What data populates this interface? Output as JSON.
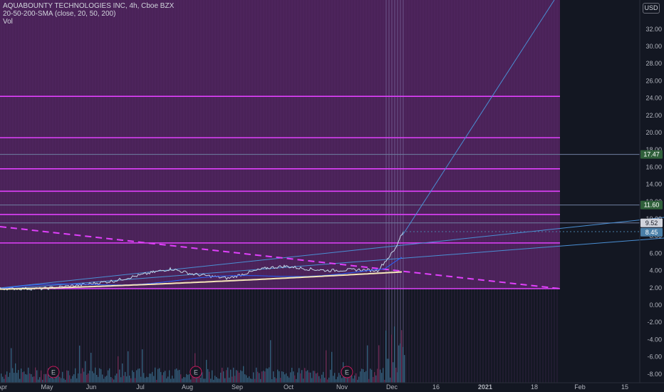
{
  "header": {
    "symbol_line": "AQUABOUNTY TECHNOLOGIES INC, 4h, Cboe BZX",
    "indicator_line": "20-50-200-SMA (close, 20, 50, 200)",
    "volume_label": "Vol",
    "currency_button": "USD"
  },
  "price_axis": {
    "ticks": [
      "32.00",
      "30.00",
      "28.00",
      "26.00",
      "24.00",
      "22.00",
      "20.00",
      "18.00",
      "16.00",
      "14.00",
      "12.00",
      "10.00",
      "8.00",
      "6.00",
      "4.00",
      "2.00",
      "0.00",
      "-2.00",
      "-4.00",
      "-6.00",
      "-8.00"
    ],
    "tags": [
      {
        "text": "17.47",
        "bg": "#2f5f3a",
        "fg": "#ffffff"
      },
      {
        "text": "11.60",
        "bg": "#2f5f3a",
        "fg": "#ffffff"
      },
      {
        "text": "9.52",
        "bg": "#d1d4dc",
        "fg": "#131722"
      },
      {
        "text": "8.45",
        "bg": "#4a7fa8",
        "fg": "#ffffff"
      }
    ]
  },
  "time_axis": {
    "labels": [
      "Apr",
      "May",
      "Jun",
      "Jul",
      "Aug",
      "Sep",
      "Oct",
      "Nov",
      "Dec",
      "16",
      "2021",
      "18",
      "Feb",
      "15"
    ]
  },
  "earnings_markers": [
    "E",
    "E",
    "E"
  ],
  "colors": {
    "background": "#131722",
    "zone_fill": "#4a2258",
    "level_line": "#e040fb",
    "trend_line": "#4a8fd4",
    "price_line": "#c3d6e8",
    "sma200": "#f5e6b8",
    "volume": "#3a6a8a"
  }
}
